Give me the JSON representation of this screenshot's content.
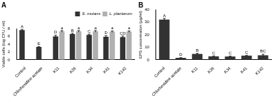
{
  "chart_data": [
    {
      "type": "bar",
      "title": "A",
      "y_label": "Viable cells (log CFU / ml)",
      "categories": [
        "Control",
        "Chlorhexidine acetate",
        "K11",
        "K26",
        "K34",
        "K41",
        "K142"
      ],
      "series": [
        {
          "name": "S. mutans",
          "color": "#333333",
          "values": [
            7.6,
            3.3,
            6.0,
            6.6,
            6.4,
            5.9,
            5.8
          ],
          "errors": [
            0.2,
            0.1,
            0.3,
            0.2,
            0.2,
            0.3,
            0.3
          ],
          "letters": [
            "A",
            "E",
            "D",
            "B",
            "C",
            "D",
            "CD"
          ]
        },
        {
          "name": "L. plantarum",
          "color": "#b0b0b0",
          "values": [
            null,
            null,
            7.3,
            7.3,
            7.3,
            7.2,
            7.2
          ],
          "errors": [
            null,
            null,
            0.2,
            0.2,
            0.2,
            0.2,
            0.2
          ],
          "letters": [
            null,
            null,
            "a",
            "a",
            "a",
            "a",
            "a"
          ]
        }
      ],
      "ylim": [
        0,
        8
      ],
      "yticks": [
        0,
        2,
        4,
        6,
        8
      ],
      "grid": false,
      "legend": "top right"
    },
    {
      "type": "bar",
      "title": "B",
      "y_label": "EPS concentration (μg/ml)",
      "categories": [
        "Control",
        "Chlorhexidine acetate",
        "K11",
        "K26",
        "K34",
        "K41",
        "K142"
      ],
      "color": "#333333",
      "values": [
        32,
        1.5,
        4.7,
        2.8,
        2.7,
        3.3,
        3.6
      ],
      "errors": [
        1.0,
        0.2,
        0.5,
        0.3,
        0.3,
        0.3,
        0.8
      ],
      "letters": [
        "A",
        "D",
        "B",
        "C",
        "C",
        "C",
        "BC"
      ],
      "ylim": [
        0,
        40
      ],
      "yticks": [
        0,
        10,
        20,
        30,
        40
      ],
      "grid": false
    }
  ]
}
